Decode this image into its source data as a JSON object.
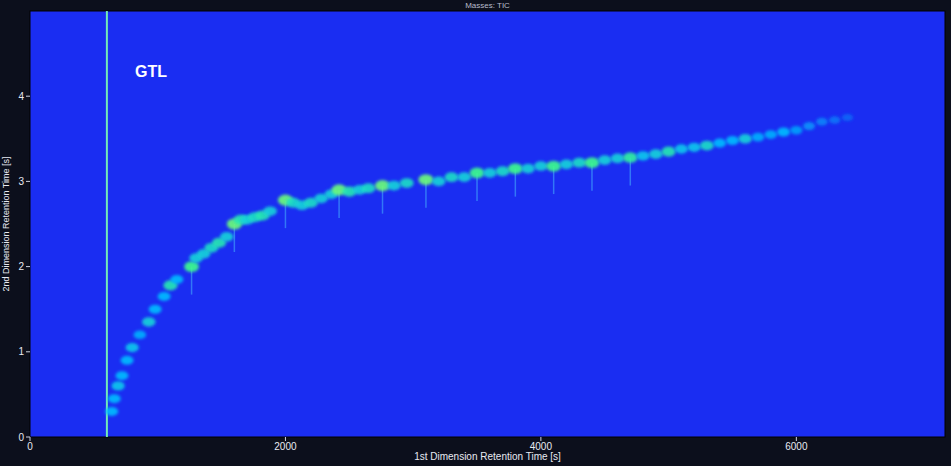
{
  "chart_data": {
    "type": "heatmap_scatter",
    "title": "Masses: TIC",
    "annotation": "GTL",
    "x_label": "1st Dimension Retention Time [s]",
    "y_label": "2nd Dimension Retention Time [s]",
    "xlim": [
      0,
      7164
    ],
    "ylim": [
      0,
      5
    ],
    "xticks": [
      0,
      2000,
      4000,
      6000
    ],
    "yticks": [
      0,
      1,
      2,
      3,
      4
    ],
    "solvent_peak_x": 602,
    "x": [
      640,
      660,
      690,
      720,
      760,
      800,
      860,
      930,
      980,
      1050,
      1100,
      1150,
      1265,
      1300,
      1360,
      1420,
      1480,
      1540,
      1600,
      1650,
      1700,
      1760,
      1820,
      1880,
      2000,
      2060,
      2130,
      2200,
      2280,
      2360,
      2420,
      2500,
      2580,
      2650,
      2760,
      2850,
      2950,
      3100,
      3200,
      3300,
      3400,
      3500,
      3600,
      3700,
      3800,
      3900,
      4000,
      4100,
      4200,
      4300,
      4400,
      4500,
      4600,
      4700,
      4800,
      4900,
      5000,
      5100,
      5200,
      5300,
      5400,
      5500,
      5600,
      5700,
      5800,
      5900,
      6000,
      6100,
      6200,
      6300,
      6400
    ],
    "y": [
      0.3,
      0.45,
      0.6,
      0.72,
      0.9,
      1.05,
      1.2,
      1.35,
      1.5,
      1.65,
      1.78,
      1.85,
      2.0,
      2.1,
      2.15,
      2.22,
      2.28,
      2.35,
      2.5,
      2.55,
      2.55,
      2.58,
      2.6,
      2.65,
      2.78,
      2.75,
      2.72,
      2.75,
      2.8,
      2.85,
      2.9,
      2.88,
      2.9,
      2.92,
      2.95,
      2.95,
      2.98,
      3.02,
      3.0,
      3.05,
      3.05,
      3.1,
      3.1,
      3.12,
      3.15,
      3.15,
      3.18,
      3.18,
      3.2,
      3.22,
      3.22,
      3.25,
      3.27,
      3.28,
      3.3,
      3.32,
      3.35,
      3.38,
      3.4,
      3.42,
      3.45,
      3.48,
      3.5,
      3.52,
      3.55,
      3.58,
      3.6,
      3.65,
      3.7,
      3.72,
      3.75
    ],
    "intensity": [
      0.5,
      0.5,
      0.55,
      0.5,
      0.5,
      0.55,
      0.45,
      0.6,
      0.5,
      0.5,
      0.7,
      0.5,
      0.8,
      0.6,
      0.6,
      0.65,
      0.7,
      0.6,
      0.85,
      0.7,
      0.6,
      0.65,
      0.7,
      0.6,
      0.85,
      0.65,
      0.6,
      0.65,
      0.6,
      0.6,
      0.85,
      0.7,
      0.6,
      0.65,
      0.85,
      0.6,
      0.65,
      0.85,
      0.6,
      0.65,
      0.6,
      0.8,
      0.6,
      0.65,
      0.8,
      0.6,
      0.6,
      0.8,
      0.6,
      0.65,
      0.8,
      0.6,
      0.6,
      0.75,
      0.55,
      0.6,
      0.7,
      0.55,
      0.55,
      0.65,
      0.5,
      0.5,
      0.6,
      0.45,
      0.45,
      0.5,
      0.4,
      0.35,
      0.3,
      0.25,
      0.2
    ]
  }
}
